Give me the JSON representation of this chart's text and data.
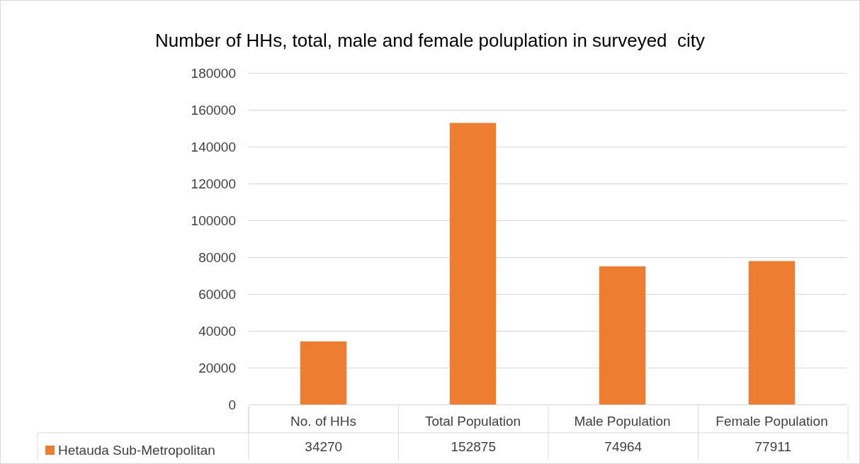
{
  "chart_data": {
    "type": "bar",
    "title": "Number of HHs, total, male and female poluplation in surveyed  city",
    "categories": [
      "No. of HHs",
      "Total Population",
      "Male Population",
      "Female Population"
    ],
    "series": [
      {
        "name": "Hetauda Sub-Metropolitan",
        "color": "#ed7d31",
        "values": [
          34270,
          152875,
          74964,
          77911
        ]
      }
    ],
    "ylim": [
      0,
      180000
    ],
    "yticks": [
      0,
      20000,
      40000,
      60000,
      80000,
      100000,
      120000,
      140000,
      160000,
      180000
    ],
    "grid": "y",
    "legend": "bottom left",
    "data_labels": true
  }
}
